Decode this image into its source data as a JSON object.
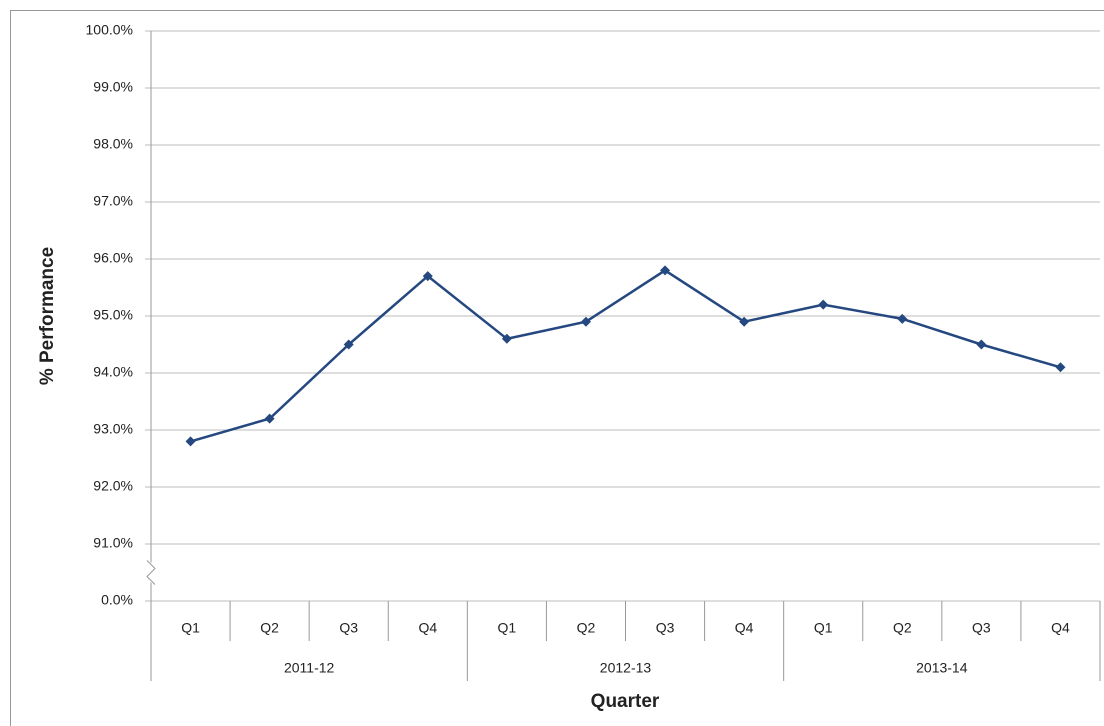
{
  "chart_data": {
    "type": "line",
    "x_label": "Quarter",
    "y_label": "% Performance",
    "categories": [
      "Q1",
      "Q2",
      "Q3",
      "Q4",
      "Q1",
      "Q2",
      "Q3",
      "Q4",
      "Q1",
      "Q2",
      "Q3",
      "Q4"
    ],
    "category_groups": [
      "2011-12",
      "2012-13",
      "2013-14"
    ],
    "series": [
      {
        "color": "#24487f",
        "values": [
          92.8,
          93.2,
          94.5,
          95.7,
          94.6,
          94.9,
          95.8,
          94.9,
          95.2,
          94.95,
          94.5,
          94.1
        ]
      }
    ],
    "ylim": [
      0,
      100
    ],
    "axis_break": [
      0,
      91
    ],
    "yticks": [
      {
        "value": 0,
        "label": "0.0%"
      },
      {
        "value": 91,
        "label": "91.0%"
      },
      {
        "value": 92,
        "label": "92.0%"
      },
      {
        "value": 93,
        "label": "93.0%"
      },
      {
        "value": 94,
        "label": "94.0%"
      },
      {
        "value": 95,
        "label": "95.0%"
      },
      {
        "value": 96,
        "label": "96.0%"
      },
      {
        "value": 97,
        "label": "97.0%"
      },
      {
        "value": 98,
        "label": "98.0%"
      },
      {
        "value": 99,
        "label": "99.0%"
      },
      {
        "value": 100,
        "label": "100.0%"
      }
    ],
    "grid": true
  }
}
